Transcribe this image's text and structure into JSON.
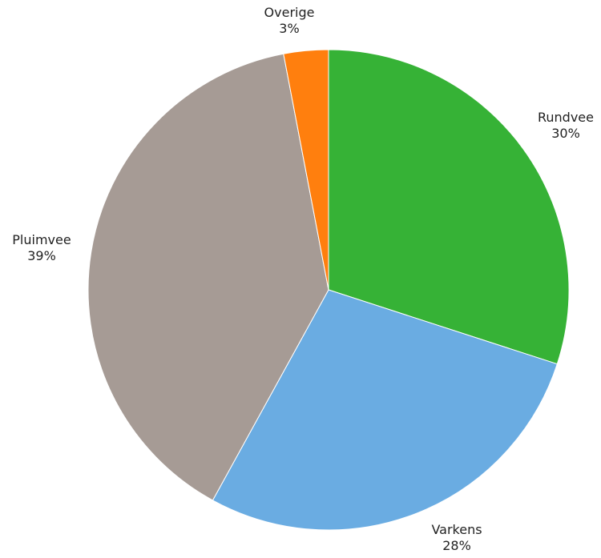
{
  "chart_data": {
    "type": "pie",
    "slices": [
      {
        "label": "Rundvee",
        "value": 30,
        "value_label": "30%",
        "color": "#36b236"
      },
      {
        "label": "Varkens",
        "value": 28,
        "value_label": "28%",
        "color": "#6aace2"
      },
      {
        "label": "Pluimvee",
        "value": 39,
        "value_label": "39%",
        "color": "#a69b95"
      },
      {
        "label": "Overige",
        "value": 3,
        "value_label": "3%",
        "color": "#ff7f0e"
      }
    ]
  }
}
